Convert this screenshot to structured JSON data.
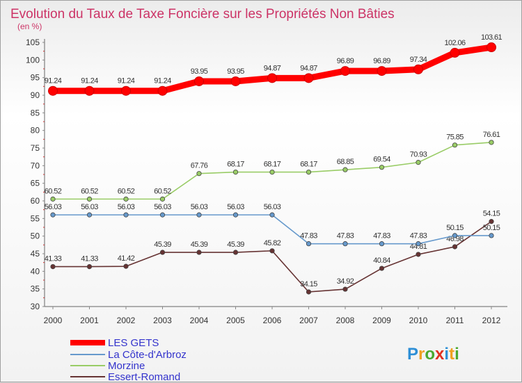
{
  "chart_data": {
    "type": "line",
    "title": "Evolution du Taux de Taxe Foncière sur les Propriétés Non Bâties",
    "unit_label": "(en %)",
    "xlabel": "",
    "ylabel": "",
    "x": [
      "2000",
      "2001",
      "2002",
      "2003",
      "2004",
      "2005",
      "2006",
      "2007",
      "2008",
      "2009",
      "2010",
      "2011",
      "2012"
    ],
    "ylim": [
      30,
      105
    ],
    "yticks": [
      "30",
      "35",
      "40",
      "45",
      "50",
      "55",
      "60",
      "65",
      "70",
      "75",
      "80",
      "85",
      "90",
      "95",
      "100",
      "105"
    ],
    "grid": false,
    "legend_position": "bottom-left",
    "series": [
      {
        "name": "LES GETS",
        "color": "#ff0000",
        "values": [
          91.24,
          91.24,
          91.24,
          91.24,
          93.95,
          93.95,
          94.87,
          94.87,
          96.89,
          96.89,
          97.34,
          102.06,
          103.61
        ],
        "labels": [
          "91.24",
          "91.24",
          "91.24",
          "91.24",
          "93.95",
          "93.95",
          "94.87",
          "94.87",
          "96.89",
          "96.89",
          "97.34",
          "102.06",
          "103.61"
        ]
      },
      {
        "name": "La Côte-d'Arbroz",
        "color": "#6699cc",
        "values": [
          56.03,
          56.03,
          56.03,
          56.03,
          56.03,
          56.03,
          56.03,
          47.83,
          47.83,
          47.83,
          47.83,
          50.15,
          50.15
        ],
        "labels": [
          "56.03",
          "56.03",
          "56.03",
          "56.03",
          "56.03",
          "56.03",
          "56.03",
          "47.83",
          "47.83",
          "47.83",
          "47.83",
          "50.15",
          "50.15"
        ]
      },
      {
        "name": "Morzine",
        "color": "#99cc66",
        "values": [
          60.52,
          60.52,
          60.52,
          60.52,
          67.76,
          68.17,
          68.17,
          68.17,
          68.85,
          69.54,
          70.93,
          75.85,
          76.61
        ],
        "labels": [
          "60.52",
          "60.52",
          "60.52",
          "60.52",
          "67.76",
          "68.17",
          "68.17",
          "68.17",
          "68.85",
          "69.54",
          "70.93",
          "75.85",
          "76.61"
        ]
      },
      {
        "name": "Essert-Romand",
        "color": "#663333",
        "values": [
          41.33,
          41.33,
          41.42,
          45.39,
          45.39,
          45.39,
          45.82,
          34.15,
          34.92,
          40.84,
          44.81,
          46.98,
          54.15
        ],
        "labels": [
          "41.33",
          "41.33",
          "41.42",
          "45.39",
          "45.39",
          "45.39",
          "45.82",
          "34.15",
          "34.92",
          "40.84",
          "44.81",
          "46.98",
          "54.15"
        ]
      }
    ]
  },
  "brand": {
    "letters": [
      "P",
      "r",
      "o",
      "x",
      "i",
      "t",
      "i"
    ],
    "colors": [
      "#2e8fd6",
      "#f0a020",
      "#4aa830",
      "#e03020",
      "#2e8fd6",
      "#f0a020",
      "#4aa830"
    ]
  }
}
